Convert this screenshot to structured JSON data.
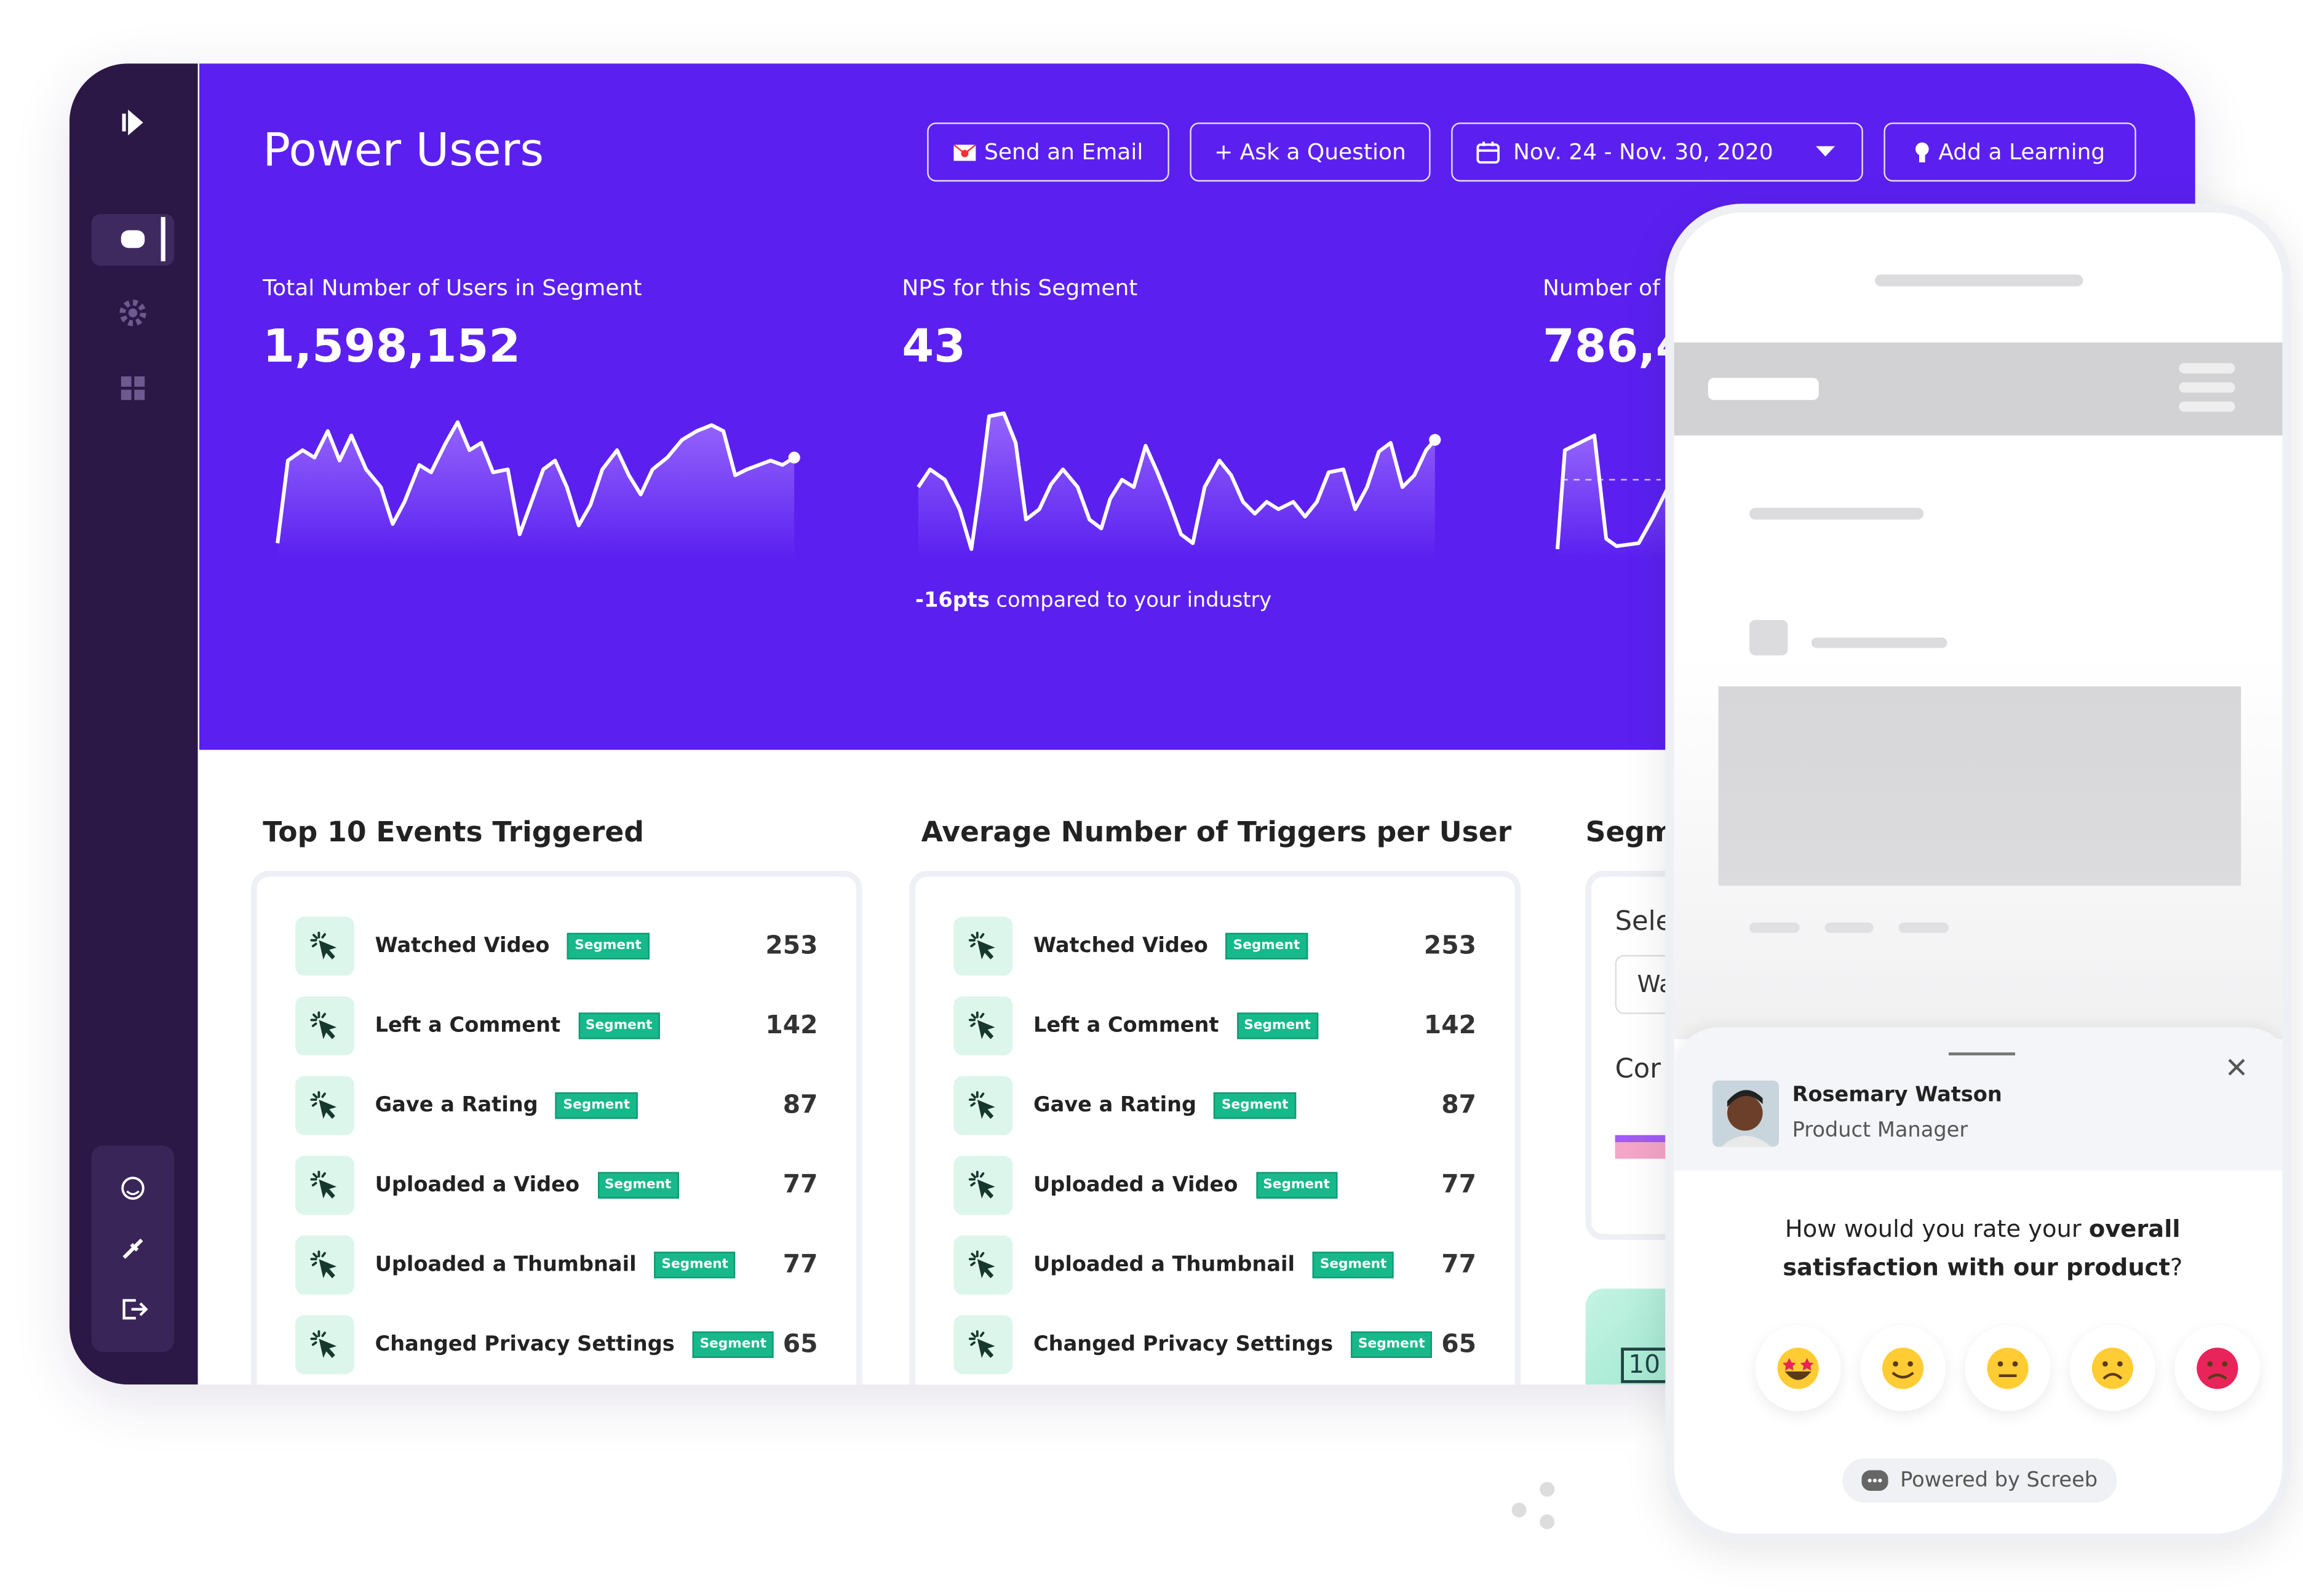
{
  "header": {
    "title": "Power Users",
    "buttons": [
      "Send an Email",
      "+ Ask a Question",
      "Nov. 24 - Nov. 30, 2020",
      "Add a Learning"
    ]
  },
  "metrics": [
    {
      "label": "Total Number of Users in Segment",
      "value": "1,598,152"
    },
    {
      "label": "NPS for this Segment",
      "value": "43",
      "note_bold": "-16pts",
      "note": "compared to your industry"
    },
    {
      "label": "Number of",
      "value": "786,4"
    }
  ],
  "sections": [
    {
      "title": "Top 10 Events Triggered",
      "rows": [
        [
          "Watched Video",
          "Segment",
          253
        ],
        [
          "Left a Comment",
          "Segment",
          142
        ],
        [
          "Gave a Rating",
          "Segment",
          87
        ],
        [
          "Uploaded a Video",
          "Segment",
          77
        ],
        [
          "Uploaded a Thumbnail",
          "Segment",
          77
        ],
        [
          "Changed Privacy Settings",
          "Segment",
          65
        ]
      ]
    },
    {
      "title": "Average Number of Triggers per User",
      "rows": [
        [
          "Watched Video",
          "Segment",
          253
        ],
        [
          "Left a Comment",
          "Segment",
          142
        ],
        [
          "Gave a Rating",
          "Segment",
          87
        ],
        [
          "Uploaded a Video",
          "Segment",
          77
        ],
        [
          "Uploaded a Thumbnail",
          "Segment",
          77
        ],
        [
          "Changed Privacy Settings",
          "Segment",
          65
        ]
      ]
    }
  ],
  "segment_panel": {
    "title": "Segm",
    "select_label": "Sele",
    "input": "Wa",
    "label2": "Cor",
    "badge": "10"
  },
  "survey": {
    "name": "Rosemary Watson",
    "role": "Product Manager",
    "question": [
      "How would you rate your",
      "overall",
      "satisfaction with our product",
      "?"
    ],
    "powered_by": "Powered by Screeb"
  }
}
